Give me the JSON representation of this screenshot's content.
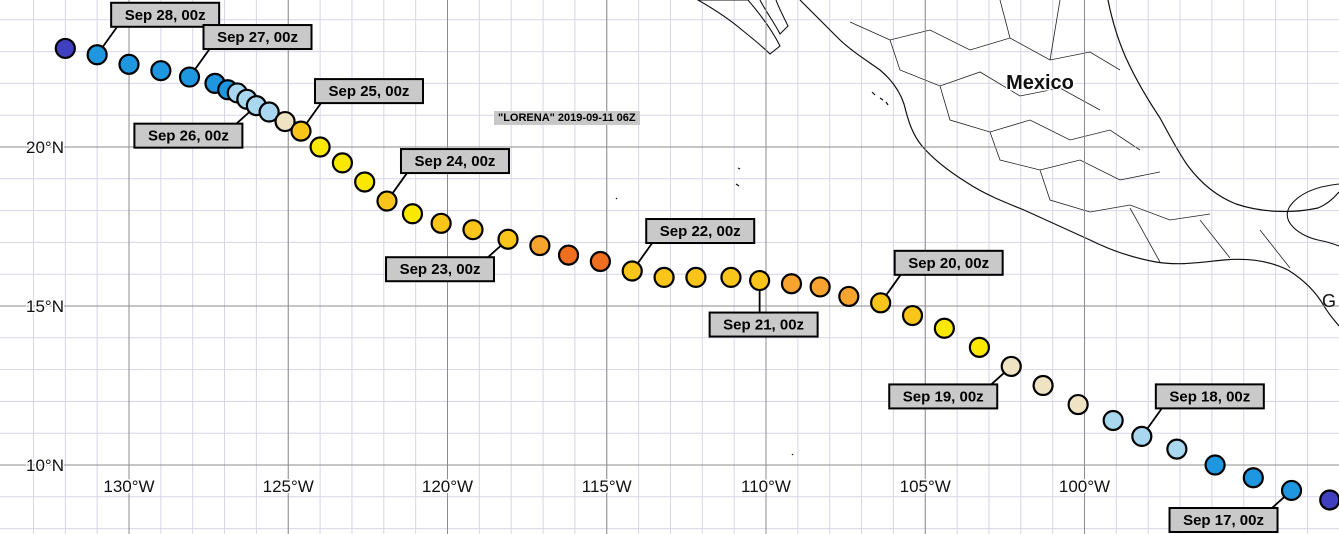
{
  "map": {
    "title": "\"LORENA\" 2019-09-11 06Z",
    "country_label": "Mexico",
    "edge_label": "G",
    "lat_labels": [
      "20°N",
      "15°N",
      "10°N"
    ],
    "lon_labels": [
      "130°W",
      "125°W",
      "120°W",
      "115°W",
      "110°W",
      "105°W",
      "100°W"
    ],
    "track_colors": {
      "navy": "#3f3fbf",
      "blue": "#1e96e0",
      "light_blue": "#a9d7ef",
      "beige": "#efe3c3",
      "yellow": "#fae800",
      "gold": "#f9c51a",
      "light_orange": "#f6a32f",
      "orange": "#ef6f1f"
    },
    "track_points": [
      {
        "lon": -132.0,
        "lat": 23.1,
        "color": "navy"
      },
      {
        "lon": -131.0,
        "lat": 22.9,
        "color": "blue"
      },
      {
        "lon": -130.0,
        "lat": 22.6,
        "color": "blue"
      },
      {
        "lon": -129.0,
        "lat": 22.4,
        "color": "blue"
      },
      {
        "lon": -128.1,
        "lat": 22.2,
        "color": "blue"
      },
      {
        "lon": -127.3,
        "lat": 22.0,
        "color": "blue"
      },
      {
        "lon": -126.9,
        "lat": 21.8,
        "color": "blue"
      },
      {
        "lon": -126.6,
        "lat": 21.7,
        "color": "light_blue"
      },
      {
        "lon": -126.3,
        "lat": 21.5,
        "color": "light_blue"
      },
      {
        "lon": -126.0,
        "lat": 21.3,
        "color": "light_blue"
      },
      {
        "lon": -125.6,
        "lat": 21.1,
        "color": "light_blue"
      },
      {
        "lon": -125.1,
        "lat": 20.8,
        "color": "beige"
      },
      {
        "lon": -124.6,
        "lat": 20.5,
        "color": "gold"
      },
      {
        "lon": -124.0,
        "lat": 20.0,
        "color": "yellow"
      },
      {
        "lon": -123.3,
        "lat": 19.5,
        "color": "yellow"
      },
      {
        "lon": -122.6,
        "lat": 18.9,
        "color": "yellow"
      },
      {
        "lon": -121.9,
        "lat": 18.3,
        "color": "gold"
      },
      {
        "lon": -121.1,
        "lat": 17.9,
        "color": "yellow"
      },
      {
        "lon": -120.2,
        "lat": 17.6,
        "color": "gold"
      },
      {
        "lon": -119.2,
        "lat": 17.4,
        "color": "gold"
      },
      {
        "lon": -118.1,
        "lat": 17.1,
        "color": "gold"
      },
      {
        "lon": -117.1,
        "lat": 16.9,
        "color": "light_orange"
      },
      {
        "lon": -116.2,
        "lat": 16.6,
        "color": "orange"
      },
      {
        "lon": -115.2,
        "lat": 16.4,
        "color": "orange"
      },
      {
        "lon": -114.2,
        "lat": 16.1,
        "color": "gold"
      },
      {
        "lon": -113.2,
        "lat": 15.9,
        "color": "gold"
      },
      {
        "lon": -112.2,
        "lat": 15.9,
        "color": "gold"
      },
      {
        "lon": -111.1,
        "lat": 15.9,
        "color": "gold"
      },
      {
        "lon": -110.2,
        "lat": 15.8,
        "color": "gold"
      },
      {
        "lon": -109.2,
        "lat": 15.7,
        "color": "light_orange"
      },
      {
        "lon": -108.3,
        "lat": 15.6,
        "color": "light_orange"
      },
      {
        "lon": -107.4,
        "lat": 15.3,
        "color": "light_orange"
      },
      {
        "lon": -106.4,
        "lat": 15.1,
        "color": "gold"
      },
      {
        "lon": -105.4,
        "lat": 14.7,
        "color": "gold"
      },
      {
        "lon": -104.4,
        "lat": 14.3,
        "color": "yellow"
      },
      {
        "lon": -103.3,
        "lat": 13.7,
        "color": "yellow"
      },
      {
        "lon": -102.3,
        "lat": 13.1,
        "color": "beige"
      },
      {
        "lon": -101.3,
        "lat": 12.5,
        "color": "beige"
      },
      {
        "lon": -100.2,
        "lat": 11.9,
        "color": "beige"
      },
      {
        "lon": -99.1,
        "lat": 11.4,
        "color": "light_blue"
      },
      {
        "lon": -98.2,
        "lat": 10.9,
        "color": "light_blue"
      },
      {
        "lon": -97.1,
        "lat": 10.5,
        "color": "light_blue"
      },
      {
        "lon": -95.9,
        "lat": 10.0,
        "color": "blue"
      },
      {
        "lon": -94.7,
        "lat": 9.6,
        "color": "blue"
      },
      {
        "lon": -93.5,
        "lat": 9.2,
        "color": "blue"
      },
      {
        "lon": -92.3,
        "lat": 8.9,
        "color": "navy"
      },
      {
        "lon": -91.2,
        "lat": 8.7,
        "color": "navy"
      }
    ],
    "date_labels": [
      {
        "text": "Sep 28, 00z",
        "point": 1,
        "pos": "above"
      },
      {
        "text": "Sep 27, 00z",
        "point": 4,
        "pos": "above"
      },
      {
        "text": "Sep 26, 00z",
        "point": 9,
        "pos": "below-left"
      },
      {
        "text": "Sep 25, 00z",
        "point": 12,
        "pos": "above"
      },
      {
        "text": "Sep 24, 00z",
        "point": 16,
        "pos": "above"
      },
      {
        "text": "Sep 23, 00z",
        "point": 20,
        "pos": "below-left"
      },
      {
        "text": "Sep 22, 00z",
        "point": 24,
        "pos": "above"
      },
      {
        "text": "Sep 21, 00z",
        "point": 28,
        "pos": "below"
      },
      {
        "text": "Sep 20, 00z",
        "point": 32,
        "pos": "above"
      },
      {
        "text": "Sep 19, 00z",
        "point": 36,
        "pos": "below-left"
      },
      {
        "text": "Sep 18, 00z",
        "point": 40,
        "pos": "above"
      },
      {
        "text": "Sep 17, 00z",
        "point": 44,
        "pos": "below-left"
      }
    ]
  }
}
